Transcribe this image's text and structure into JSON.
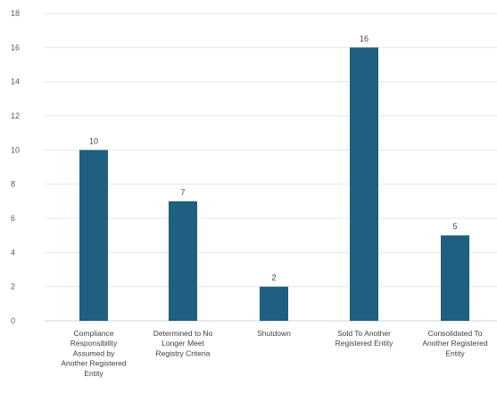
{
  "chart_data": {
    "type": "bar",
    "title": "",
    "xlabel": "",
    "ylabel": "",
    "categories": [
      "Compliance Responsibility Assumed by Another Registered Entity",
      "Determined to No Longer Meet Registry Criteria",
      "Shutdown",
      "Sold To Another Registered Entity",
      "Consolidated To Another Registered Entity"
    ],
    "category_lines": [
      [
        "Compliance",
        "Responsibility",
        "Assumed by",
        "Another Registered",
        "Entity"
      ],
      [
        "Determined to No",
        "Longer Meet",
        "Registry Criteria"
      ],
      [
        "Shutdown"
      ],
      [
        "Sold To Another",
        "Registered Entity"
      ],
      [
        "Consolidated To",
        "Another Registered",
        "Entity"
      ]
    ],
    "values": [
      10,
      7,
      2,
      16,
      5
    ],
    "data_labels": [
      "10",
      "7",
      "2",
      "16",
      "5"
    ],
    "ylim": [
      0,
      18
    ],
    "yticks": [
      "0",
      "2",
      "4",
      "6",
      "8",
      "10",
      "12",
      "14",
      "16",
      "18"
    ],
    "grid": true,
    "legend": "none",
    "bar_color": "#1f5f7f",
    "grid_color": "#e6e6e6"
  }
}
